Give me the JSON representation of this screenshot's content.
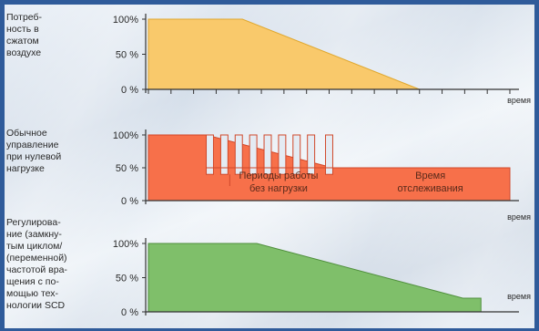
{
  "chart_data": [
    {
      "type": "area",
      "row_label": "Потреб-\nность в\nсжатом\nвоздухе",
      "xlabel": "время",
      "yticks": [
        "100%",
        "50 %",
        "0 %"
      ],
      "ylim": [
        0,
        100
      ],
      "series": [
        {
          "color": "#f9c96b",
          "edge": "#e0a830",
          "x": [
            0,
            26,
            75
          ],
          "values": [
            100,
            100,
            0
          ]
        }
      ]
    },
    {
      "type": "area",
      "row_label": "Обычное\nуправление\nпри нулевой\nнагрузке",
      "xlabel": "время",
      "yticks": [
        "100%",
        "50 %",
        "0 %"
      ],
      "ylim": [
        0,
        100
      ],
      "pulse_levels": {
        "high": 100,
        "low": 40
      },
      "pulses_x": [
        [
          16,
          18
        ],
        [
          20,
          22
        ],
        [
          24,
          26
        ],
        [
          28,
          30
        ],
        [
          32,
          34
        ],
        [
          36,
          38
        ],
        [
          40,
          42
        ],
        [
          44,
          46
        ],
        [
          49,
          51
        ]
      ],
      "series": [
        {
          "color": "#f7704a",
          "edge": "#d0482a",
          "x": [
            0,
            16,
            51,
            100
          ],
          "values": [
            100,
            100,
            50,
            50
          ]
        }
      ],
      "annotations": [
        {
          "lines": [
            "Периоды работы",
            "без нагрузки"
          ]
        },
        {
          "lines": [
            "Время",
            "отслеживания"
          ]
        }
      ]
    },
    {
      "type": "area",
      "row_label": "Регулирова-\nние (замкну-\nтым циклом/\n(переменной)\nчастотой вра-\nщения с по-\nмощью тех-\nнологии SCD",
      "xlabel": "время",
      "yticks": [
        "100%",
        "50 %",
        "0 %"
      ],
      "ylim": [
        0,
        100
      ],
      "series": [
        {
          "color": "#7fbf6a",
          "edge": "#4f8f3c",
          "x": [
            0,
            30,
            87,
            92
          ],
          "values": [
            100,
            100,
            20,
            20
          ]
        }
      ]
    }
  ]
}
